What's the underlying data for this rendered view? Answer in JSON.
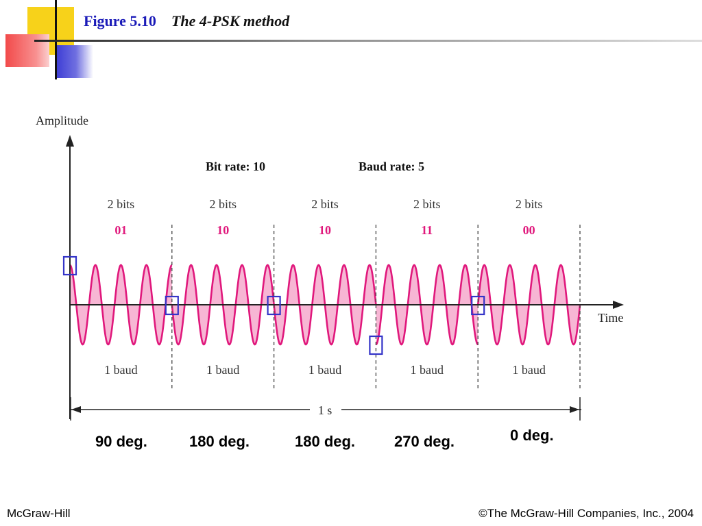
{
  "title": {
    "figure": "Figure 5.10",
    "name": "The 4-PSK method"
  },
  "diagram": {
    "y_axis_label": "Amplitude",
    "x_axis_label": "Time",
    "bit_rate": "Bit rate: 10",
    "baud_rate": "Baud rate: 5",
    "bits_label": "2 bits",
    "baud_label": "1 baud",
    "duration": "1 s",
    "wave_color": "#e0187c",
    "fill_color": "#f7b6d4",
    "marker_color": "#3434c8",
    "segments": [
      {
        "bits": "01",
        "phase_deg": 90
      },
      {
        "bits": "10",
        "phase_deg": 180
      },
      {
        "bits": "10",
        "phase_deg": 180
      },
      {
        "bits": "11",
        "phase_deg": 270
      },
      {
        "bits": "00",
        "phase_deg": 0
      }
    ]
  },
  "phase_labels": [
    "90 deg.",
    "180 deg.",
    "180 deg.",
    "270 deg.",
    "0 deg."
  ],
  "footer": {
    "left": "McGraw-Hill",
    "right": "©The McGraw-Hill Companies, Inc., 2004"
  }
}
